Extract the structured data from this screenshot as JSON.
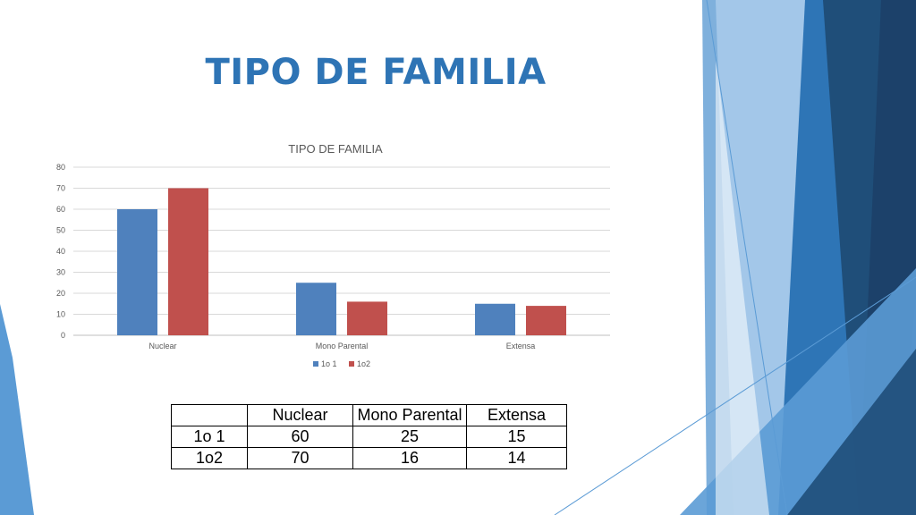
{
  "slide": {
    "title": "TIPO DE FAMILIA"
  },
  "colors": {
    "series1": "#4f81bd",
    "series2": "#c0504d",
    "title": "#2e74b5",
    "decoDark": "#1f4e79",
    "decoMid": "#2e75b6",
    "decoLight": "#9dc3e6"
  },
  "chart_data": {
    "type": "bar",
    "title": "TIPO DE FAMILIA",
    "categories": [
      "Nuclear",
      "Mono Parental",
      "Extensa"
    ],
    "series": [
      {
        "name": "1o 1",
        "values": [
          60,
          25,
          15
        ]
      },
      {
        "name": "1o2",
        "values": [
          70,
          16,
          14
        ]
      }
    ],
    "ylim": [
      0,
      80
    ],
    "yticks": [
      0,
      10,
      20,
      30,
      40,
      50,
      60,
      70,
      80
    ],
    "xlabel": "",
    "ylabel": "",
    "grid": true,
    "legend": "bottom"
  },
  "table": {
    "headers": [
      "",
      "Nuclear",
      "Mono Parental",
      "Extensa"
    ],
    "rows": [
      [
        "1o 1",
        "60",
        "25",
        "15"
      ],
      [
        "1o2",
        "70",
        "16",
        "14"
      ]
    ]
  }
}
